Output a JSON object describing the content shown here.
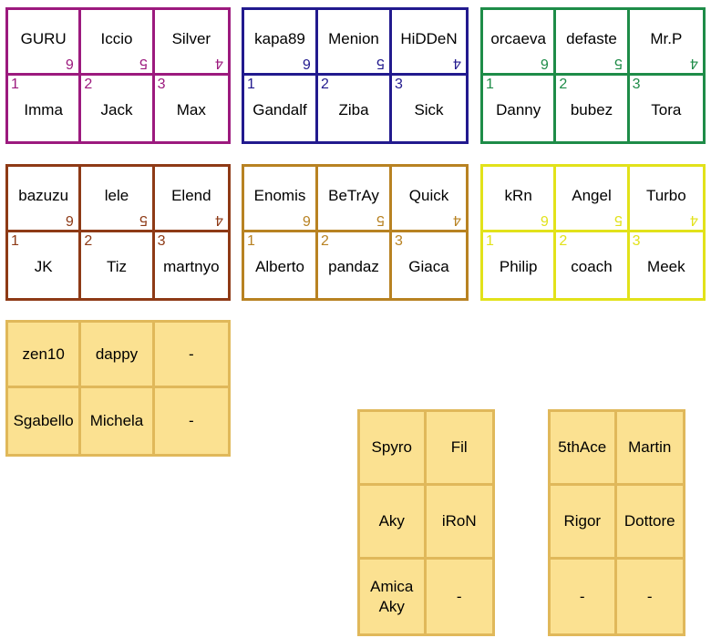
{
  "teams": [
    {
      "color": "#9c1a7e",
      "top": [
        "GURU",
        "Iccio",
        "Silver"
      ],
      "bottom": [
        "Imma",
        "Jack",
        "Max"
      ],
      "nums": [
        "1",
        "2",
        "3"
      ],
      "seeds": [
        "6",
        "5",
        "4"
      ]
    },
    {
      "color": "#221a8e",
      "top": [
        "kapa89",
        "Menion",
        "HiDDeN"
      ],
      "bottom": [
        "Gandalf",
        "Ziba",
        "Sick"
      ],
      "nums": [
        "1",
        "2",
        "3"
      ],
      "seeds": [
        "6",
        "5",
        "4"
      ]
    },
    {
      "color": "#1e8c48",
      "top": [
        "orcaeva",
        "defaste",
        "Mr.P"
      ],
      "bottom": [
        "Danny",
        "bubez",
        "Tora"
      ],
      "nums": [
        "1",
        "2",
        "3"
      ],
      "seeds": [
        "6",
        "5",
        "4"
      ]
    },
    {
      "color": "#8e3a16",
      "top": [
        "bazuzu",
        "lele",
        "Elend"
      ],
      "bottom": [
        "JK",
        "Tiz",
        "martnyo"
      ],
      "nums": [
        "1",
        "2",
        "3"
      ],
      "seeds": [
        "6",
        "5",
        "4"
      ]
    },
    {
      "color": "#b88222",
      "top": [
        "Enomis",
        "BeTrAy",
        "Quick"
      ],
      "bottom": [
        "Alberto",
        "pandaz",
        "Giaca"
      ],
      "nums": [
        "1",
        "2",
        "3"
      ],
      "seeds": [
        "6",
        "5",
        "4"
      ]
    },
    {
      "color": "#e2e21a",
      "top": [
        "kRn",
        "Angel",
        "Turbo"
      ],
      "bottom": [
        "Philip",
        "coach",
        "Meek"
      ],
      "nums": [
        "1",
        "2",
        "3"
      ],
      "seeds": [
        "6",
        "5",
        "4"
      ]
    }
  ],
  "boxes": [
    {
      "rows": [
        [
          "zen10",
          "dappy",
          "-"
        ],
        [
          "Sgabello",
          "Michela",
          "-"
        ]
      ]
    },
    {
      "rows": [
        [
          "Spyro",
          "Fil"
        ],
        [
          "Aky",
          "iRoN"
        ],
        [
          "Amica\nAky",
          "-"
        ]
      ]
    },
    {
      "rows": [
        [
          "5thAce",
          "Martin"
        ],
        [
          "Rigor",
          "Dottore"
        ],
        [
          "-",
          "-"
        ]
      ]
    }
  ]
}
